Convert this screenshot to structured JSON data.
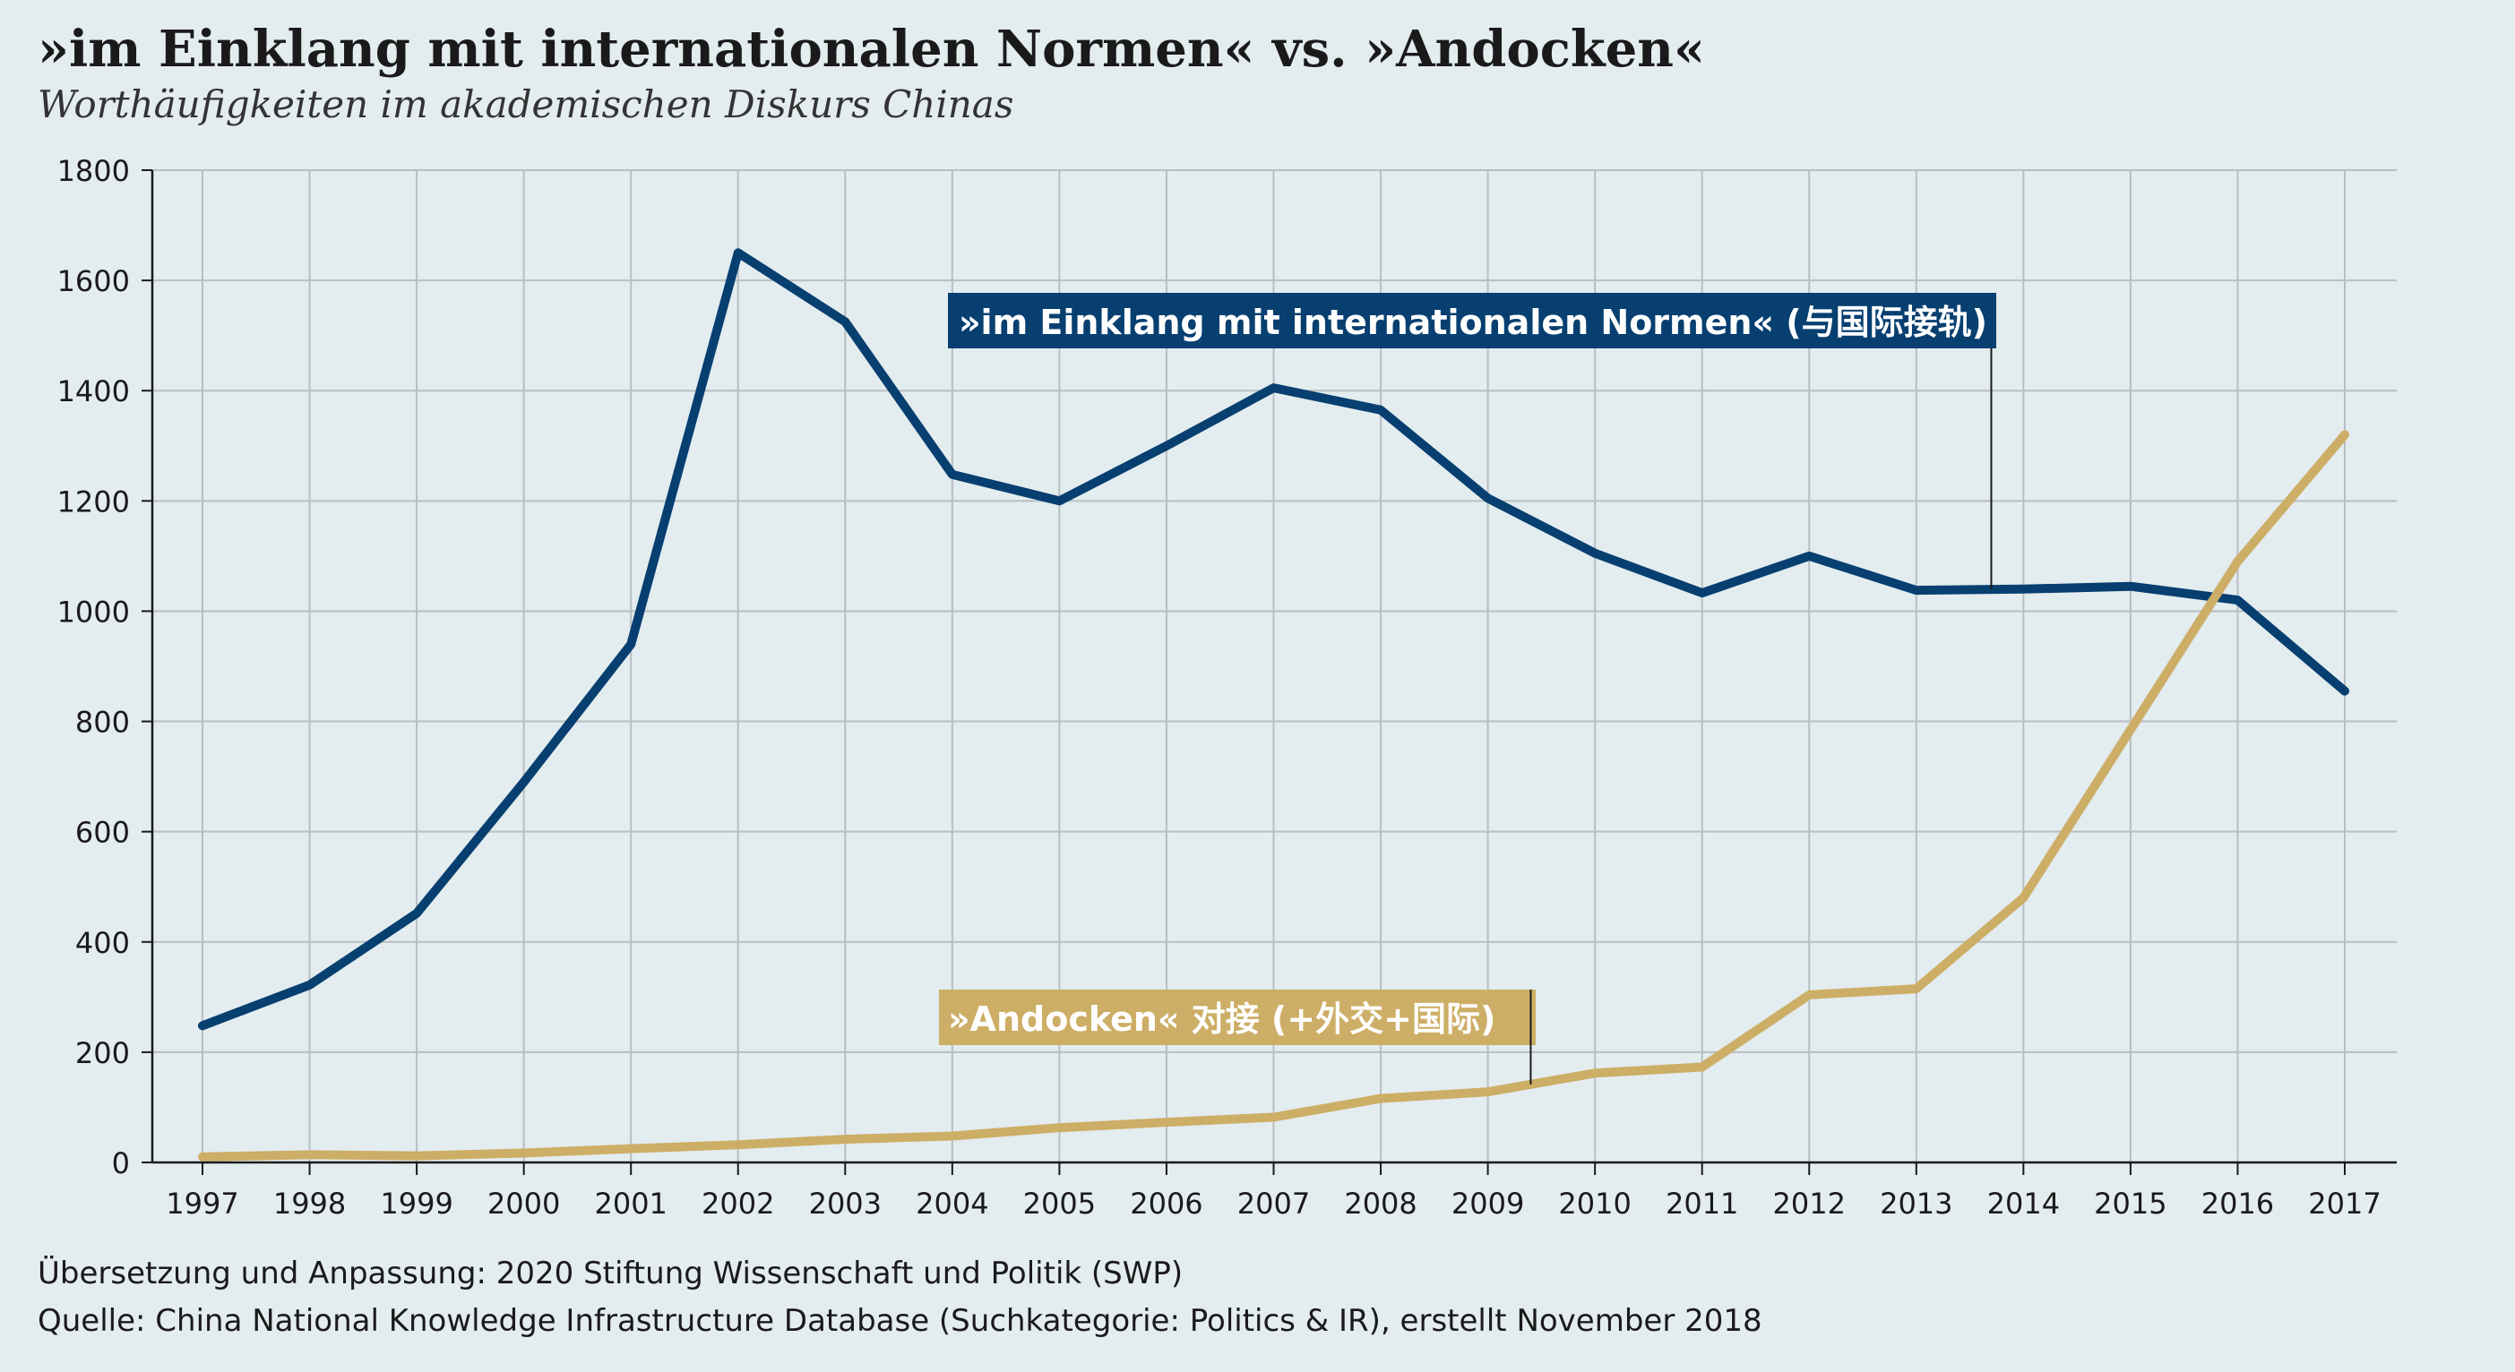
{
  "title": "»im Einklang mit internationalen Normen« vs. »Andocken«",
  "subtitle": "Worthäufigkeiten im akademischen Diskurs Chinas",
  "credits": {
    "translation": "Übersetzung und Anpassung: 2020 Stiftung Wissenschaft und Politik (SWP)",
    "source": "Quelle: China National Knowledge Infrastructure Database (Suchkategorie: Politics & IR), erstellt November 2018"
  },
  "colors": {
    "background": "#e3ecef",
    "norms": "#073f70",
    "andocken": "#cdae66",
    "grid": "#b8bec2",
    "axis": "#1a1a1a"
  },
  "chart_data": {
    "type": "line",
    "title": "»im Einklang mit internationalen Normen« vs. »Andocken«",
    "subtitle": "Worthäufigkeiten im akademischen Diskurs Chinas",
    "xlabel": "",
    "ylabel": "",
    "ylim": [
      0,
      1800
    ],
    "yticks": [
      0,
      200,
      400,
      600,
      800,
      1000,
      1200,
      1400,
      1600,
      1800
    ],
    "x": [
      "1997",
      "1998",
      "1999",
      "2000",
      "2001",
      "2002",
      "2003",
      "2004",
      "2005",
      "2006",
      "2007",
      "2008",
      "2009",
      "2010",
      "2011",
      "2012",
      "2013",
      "2014",
      "2015",
      "2016",
      "2017"
    ],
    "grid": true,
    "series": [
      {
        "name": "»im Einklang mit internationalen Normen« (与国际接轨)",
        "color": "#073f70",
        "values": [
          248,
          322,
          452,
          690,
          940,
          1650,
          1525,
          1248,
          1200,
          1300,
          1405,
          1365,
          1205,
          1105,
          1033,
          1100,
          1038,
          1040,
          1045,
          1020,
          855
        ]
      },
      {
        "name": "»Andocken« 对接 (+外交+国际)",
        "color": "#cdae66",
        "values": [
          10,
          14,
          12,
          17,
          25,
          32,
          42,
          48,
          63,
          73,
          82,
          116,
          128,
          162,
          173,
          304,
          315,
          480,
          785,
          1090,
          1320
        ]
      }
    ],
    "annotations": [
      {
        "series": 0,
        "text": "»im Einklang mit internationalen Normen« (与国际接轨)",
        "anchor_x": "2013.7"
      },
      {
        "series": 1,
        "text": "»Andocken« 对接 (+外交+国际)",
        "anchor_x": "2009.4"
      }
    ]
  }
}
